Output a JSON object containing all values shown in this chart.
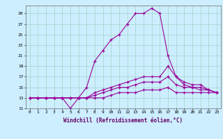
{
  "xlabel": "Windchill (Refroidissement éolien,°C)",
  "bg_color": "#cceeff",
  "grid_color": "#99ccbb",
  "line_color": "#990099",
  "xmin": 0,
  "xmax": 23,
  "ymin": 11,
  "ymax": 30,
  "yticks": [
    11,
    13,
    15,
    17,
    19,
    21,
    23,
    25,
    27,
    29
  ],
  "xticks": [
    0,
    1,
    2,
    3,
    4,
    5,
    6,
    7,
    8,
    9,
    10,
    11,
    12,
    13,
    14,
    15,
    16,
    17,
    18,
    19,
    20,
    21,
    22,
    23
  ],
  "line1_x": [
    0,
    1,
    2,
    3,
    4,
    5,
    6,
    7,
    8,
    9,
    10,
    11,
    12,
    13,
    14,
    15,
    16,
    17,
    18,
    19,
    20,
    21,
    22,
    23
  ],
  "line1_y": [
    13,
    13,
    13,
    13,
    13,
    11,
    13,
    15,
    20,
    22,
    24,
    25,
    27,
    29,
    29,
    30,
    29,
    21,
    17,
    15.5,
    15,
    15,
    14.5,
    14
  ],
  "line2_x": [
    0,
    1,
    2,
    3,
    4,
    5,
    6,
    7,
    8,
    9,
    10,
    11,
    12,
    13,
    14,
    15,
    16,
    17,
    18,
    19,
    20,
    21,
    22,
    23
  ],
  "line2_y": [
    13,
    13,
    13,
    13,
    13,
    13,
    13,
    13,
    14,
    14.5,
    15,
    15.5,
    16,
    16.5,
    17,
    17,
    17,
    19,
    17,
    16,
    15.5,
    15.5,
    14.5,
    14
  ],
  "line3_x": [
    0,
    1,
    2,
    3,
    4,
    5,
    6,
    7,
    8,
    9,
    10,
    11,
    12,
    13,
    14,
    15,
    16,
    17,
    18,
    19,
    20,
    21,
    22,
    23
  ],
  "line3_y": [
    13,
    13,
    13,
    13,
    13,
    13,
    13,
    13,
    13.5,
    14,
    14.5,
    15,
    15,
    15.5,
    16,
    16,
    16,
    17,
    15.5,
    15,
    15,
    14.5,
    14.5,
    14
  ],
  "line4_x": [
    0,
    1,
    2,
    3,
    4,
    5,
    6,
    7,
    8,
    9,
    10,
    11,
    12,
    13,
    14,
    15,
    16,
    17,
    18,
    19,
    20,
    21,
    22,
    23
  ],
  "line4_y": [
    13,
    13,
    13,
    13,
    13,
    13,
    13,
    13,
    13,
    13,
    13.5,
    14,
    14,
    14,
    14.5,
    14.5,
    14.5,
    15,
    14,
    14,
    14,
    14,
    14,
    14
  ]
}
